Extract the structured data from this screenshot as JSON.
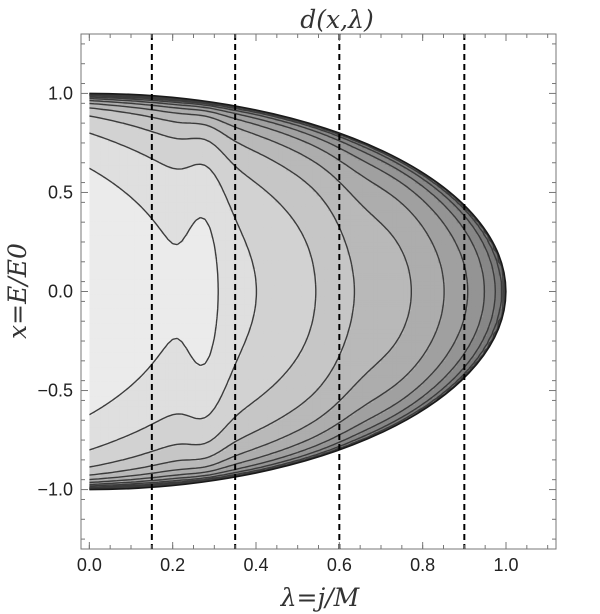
{
  "chart_data": {
    "type": "contour",
    "title": "d(x,λ)",
    "xlabel": "λ=j/M",
    "ylabel": "x=E/E0",
    "xlim": [
      -0.02,
      1.12
    ],
    "ylim": [
      -1.3,
      1.3
    ],
    "x_ticks": [
      {
        "value": 0.0,
        "label": "0.0"
      },
      {
        "value": 0.2,
        "label": "0.2"
      },
      {
        "value": 0.4,
        "label": "0.4"
      },
      {
        "value": 0.6,
        "label": "0.6"
      },
      {
        "value": 0.8,
        "label": "0.8"
      },
      {
        "value": 1.0,
        "label": "1.0"
      }
    ],
    "y_ticks": [
      {
        "value": -1.0,
        "label": "−1.0"
      },
      {
        "value": -0.5,
        "label": "−0.5"
      },
      {
        "value": 0.0,
        "label": "0.0"
      },
      {
        "value": 0.5,
        "label": "0.5"
      },
      {
        "value": 1.0,
        "label": "1.0"
      }
    ],
    "domain_boundary": "x^2 + λ^2 = 1, λ ≥ 0",
    "vertical_reference_lines": [
      0.15,
      0.35,
      0.6,
      0.9
    ],
    "reference_line_style": "dashed",
    "shading": "grayscale, darker toward (λ=0, x=±1), lighter toward λ=1",
    "contour_levels": 16,
    "grid": false,
    "legend": "none"
  }
}
